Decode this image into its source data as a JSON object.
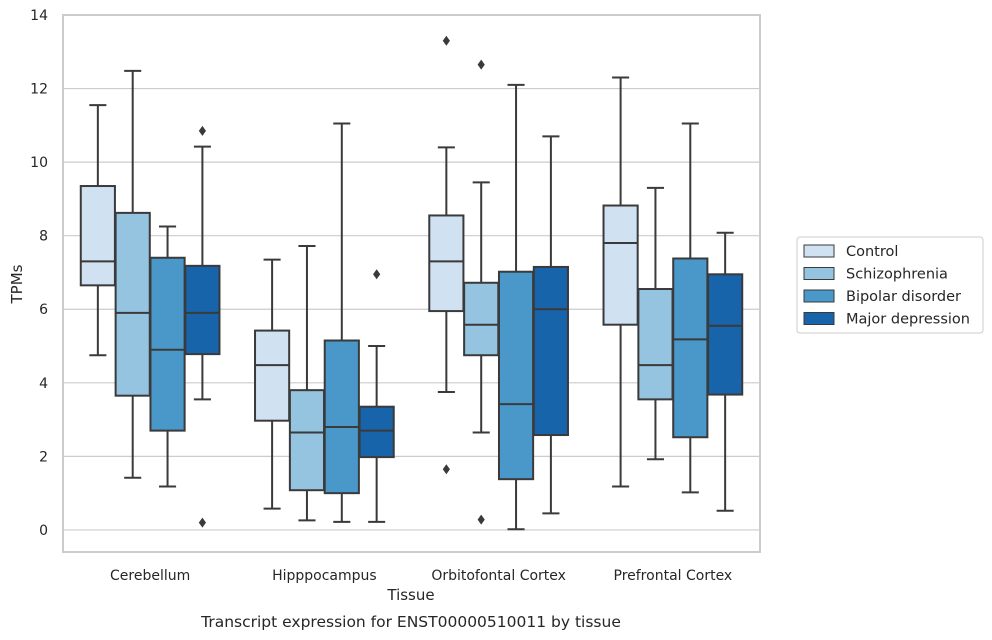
{
  "chart_data": {
    "type": "boxplot",
    "title": "",
    "caption": "Transcript expression for ENST00000510011 by tissue",
    "xlabel": "Tissue",
    "ylabel": "TPMs",
    "ylim": [
      -0.6,
      14
    ],
    "yticks": [
      0,
      2,
      4,
      6,
      8,
      10,
      12,
      14
    ],
    "grid": "horizontal",
    "legend_position": "right",
    "categories": [
      "Cerebellum",
      "Hipppocampus",
      "Orbitofontal Cortex",
      "Prefrontal Cortex"
    ],
    "series": [
      {
        "name": "Control",
        "color": "#d0e1f2",
        "boxes": [
          {
            "whislo": 4.75,
            "q1": 6.65,
            "med": 7.3,
            "q3": 9.35,
            "whishi": 11.55,
            "fliers": []
          },
          {
            "whislo": 0.58,
            "q1": 2.97,
            "med": 4.48,
            "q3": 5.42,
            "whishi": 7.35,
            "fliers": []
          },
          {
            "whislo": 3.75,
            "q1": 5.95,
            "med": 7.3,
            "q3": 8.55,
            "whishi": 10.4,
            "fliers": [
              13.3,
              1.65
            ]
          },
          {
            "whislo": 1.18,
            "q1": 5.58,
            "med": 7.8,
            "q3": 8.82,
            "whishi": 12.3,
            "fliers": []
          }
        ]
      },
      {
        "name": "Schizophrenia",
        "color": "#94c4df",
        "boxes": [
          {
            "whislo": 1.42,
            "q1": 3.65,
            "med": 5.9,
            "q3": 8.62,
            "whishi": 12.48,
            "fliers": []
          },
          {
            "whislo": 0.26,
            "q1": 1.08,
            "med": 2.65,
            "q3": 3.8,
            "whishi": 7.72,
            "fliers": []
          },
          {
            "whislo": 2.65,
            "q1": 4.75,
            "med": 5.58,
            "q3": 6.72,
            "whishi": 9.45,
            "fliers": [
              12.65,
              0.28
            ]
          },
          {
            "whislo": 1.92,
            "q1": 3.55,
            "med": 4.48,
            "q3": 6.55,
            "whishi": 9.3,
            "fliers": []
          }
        ]
      },
      {
        "name": "Bipolar disorder",
        "color": "#4a98c9",
        "boxes": [
          {
            "whislo": 1.18,
            "q1": 2.7,
            "med": 4.9,
            "q3": 7.4,
            "whishi": 8.25,
            "fliers": []
          },
          {
            "whislo": 0.22,
            "q1": 1.0,
            "med": 2.8,
            "q3": 5.15,
            "whishi": 11.05,
            "fliers": []
          },
          {
            "whislo": 0.02,
            "q1": 1.38,
            "med": 3.42,
            "q3": 7.02,
            "whishi": 12.1,
            "fliers": []
          },
          {
            "whislo": 1.02,
            "q1": 2.52,
            "med": 5.18,
            "q3": 7.38,
            "whishi": 11.05,
            "fliers": []
          }
        ]
      },
      {
        "name": "Major depression",
        "color": "#1764ab",
        "boxes": [
          {
            "whislo": 3.55,
            "q1": 4.78,
            "med": 5.9,
            "q3": 7.18,
            "whishi": 10.42,
            "fliers": [
              10.85,
              0.2
            ]
          },
          {
            "whislo": 0.22,
            "q1": 1.98,
            "med": 2.7,
            "q3": 3.35,
            "whishi": 5.0,
            "fliers": [
              6.95
            ]
          },
          {
            "whislo": 0.45,
            "q1": 2.58,
            "med": 6.0,
            "q3": 7.15,
            "whishi": 10.7,
            "fliers": []
          },
          {
            "whislo": 0.52,
            "q1": 3.68,
            "med": 5.55,
            "q3": 6.95,
            "whishi": 8.08,
            "fliers": []
          }
        ]
      }
    ]
  }
}
